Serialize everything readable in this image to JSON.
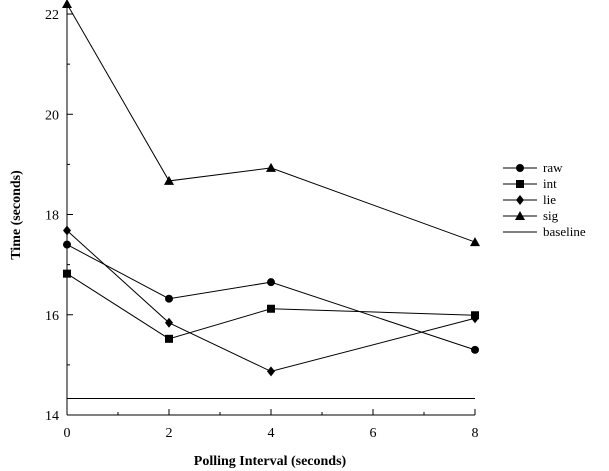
{
  "chart_data": {
    "type": "line",
    "title": "",
    "xlabel": "Polling Interval (seconds)",
    "ylabel": "Time (seconds)",
    "xlim": [
      0,
      8
    ],
    "ylim": [
      14,
      22.2
    ],
    "x_ticks": [
      0,
      2,
      4,
      6,
      8
    ],
    "y_ticks": [
      14,
      16,
      18,
      20,
      22
    ],
    "grid": false,
    "legend_position": "right",
    "series": [
      {
        "name": "raw",
        "marker": "circle",
        "x": [
          0,
          2,
          4,
          8
        ],
        "values": [
          17.4,
          16.32,
          16.65,
          15.3
        ]
      },
      {
        "name": "int",
        "marker": "square",
        "x": [
          0,
          2,
          4,
          8
        ],
        "values": [
          16.82,
          15.52,
          16.12,
          15.99
        ]
      },
      {
        "name": "lie",
        "marker": "diamond",
        "x": [
          0,
          2,
          4,
          8
        ],
        "values": [
          17.68,
          15.84,
          14.87,
          15.93
        ]
      },
      {
        "name": "sig",
        "marker": "triangle",
        "x": [
          0,
          2,
          4,
          8
        ],
        "values": [
          22.2,
          18.67,
          18.93,
          17.45
        ]
      },
      {
        "name": "baseline",
        "marker": "none",
        "x": [
          0,
          8
        ],
        "values": [
          14.33,
          14.33
        ]
      }
    ],
    "colors": {
      "line": "#000000",
      "background": "#ffffff"
    }
  }
}
